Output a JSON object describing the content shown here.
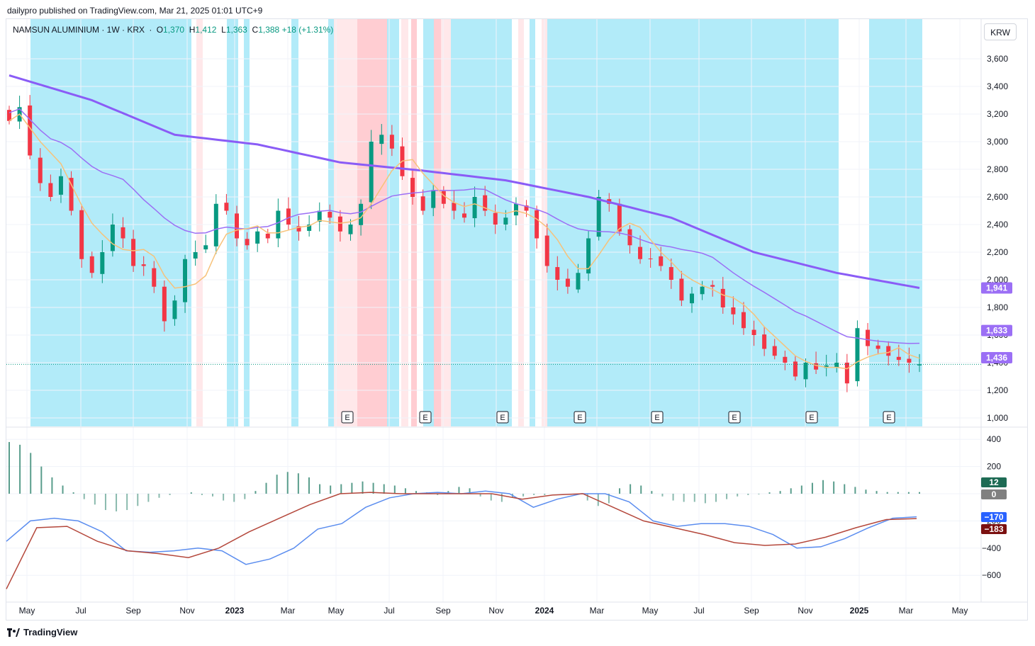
{
  "publisher": "dailypro published on TradingView.com, Mar 21, 2025 01:01 UTC+9",
  "legend": {
    "symbol": "NAMSUN ALUMINIUM · 1W · KRX",
    "o": "1,370",
    "h": "1,412",
    "l": "1,363",
    "c": "1,388",
    "change": "+18 (+1.31%)"
  },
  "currency": "KRW",
  "footer_brand": "TradingView",
  "colors": {
    "up": "#089981",
    "down": "#f23645",
    "ma_slow": "#8a5cf6",
    "ma_fast": "#9b6ff5",
    "ma_short": "#f7c27a",
    "macd": "#5b8def",
    "signal": "#b4473b",
    "hist": "#3c8c78",
    "band_blue": "#b2ebf9",
    "band_red": "#ffcdd2",
    "band_pink": "#ffe8ea"
  },
  "chart_data": {
    "type": "candlestick",
    "price_axis": {
      "ticks": [
        1000,
        1200,
        1400,
        1600,
        1800,
        2000,
        2200,
        2400,
        2600,
        2800,
        3000,
        3200,
        3400,
        3600
      ],
      "range": [
        950,
        3700
      ]
    },
    "time_axis": {
      "labels": [
        "May",
        "Jul",
        "Sep",
        "Nov",
        "2023",
        "Mar",
        "May",
        "Jul",
        "Sep",
        "Nov",
        "2024",
        "Mar",
        "May",
        "Jul",
        "Sep",
        "Nov",
        "2025",
        "Mar",
        "May"
      ]
    },
    "series_labels": {
      "ma_slow": "1,941",
      "ma_mid": "1,633",
      "ma_fast": "1,436"
    },
    "last_price": 1388,
    "earnings_marker": "E",
    "close_path": [
      3150,
      3250,
      2900,
      2700,
      2600,
      2750,
      2500,
      2150,
      2050,
      2200,
      2400,
      2300,
      2100,
      2100,
      1950,
      1700,
      1850,
      2150,
      2200,
      2250,
      2550,
      2500,
      2300,
      2250,
      2350,
      2300,
      2500,
      2400,
      2350,
      2400,
      2500,
      2450,
      2350,
      2400,
      2550,
      3000,
      3050,
      2950,
      2750,
      2600,
      2500,
      2650,
      2550,
      2500,
      2450,
      2600,
      2500,
      2400,
      2450,
      2550,
      2500,
      2300,
      2100,
      2000,
      1950,
      2050,
      2300,
      2600,
      2550,
      2350,
      2250,
      2150,
      2150,
      2100,
      2000,
      1850,
      1900,
      1950,
      1950,
      1800,
      1750,
      1650,
      1600,
      1500,
      1450,
      1400,
      1300,
      1400,
      1350,
      1380,
      1400,
      1250,
      1650,
      1520,
      1500,
      1450,
      1420,
      1400,
      1388
    ],
    "indicator": {
      "ticks": [
        -600,
        -400,
        -200,
        0,
        200,
        400
      ],
      "labels": {
        "hist": "12",
        "zero": "0",
        "macd": "-170",
        "signal": "-183"
      },
      "histogram": [
        380,
        360,
        300,
        200,
        120,
        60,
        10,
        -40,
        -80,
        -120,
        -130,
        -120,
        -90,
        -60,
        -30,
        -10,
        0,
        10,
        -10,
        -20,
        -50,
        -60,
        -40,
        20,
        80,
        140,
        160,
        150,
        120,
        70,
        60,
        70,
        80,
        90,
        80,
        70,
        60,
        40,
        20,
        10,
        -10,
        20,
        50,
        40,
        -20,
        -50,
        -60,
        -30,
        -20,
        -10,
        -10,
        0,
        0,
        -10,
        -50,
        -90,
        -70,
        40,
        70,
        60,
        20,
        -20,
        -50,
        -60,
        -60,
        -70,
        -60,
        -40,
        -20,
        -10,
        -5,
        10,
        20,
        40,
        60,
        80,
        100,
        90,
        70,
        50,
        30,
        20,
        12,
        12,
        12,
        12
      ],
      "macd": [
        -350,
        -200,
        -180,
        -200,
        -280,
        -420,
        -430,
        -420,
        -400,
        -420,
        -520,
        -480,
        -400,
        -260,
        -220,
        -100,
        -30,
        0,
        10,
        0,
        20,
        0,
        -100,
        -40,
        0,
        0,
        -60,
        -200,
        -240,
        -220,
        -220,
        -240,
        -300,
        -400,
        -390,
        -330,
        -250,
        -180,
        -170
      ],
      "signal": [
        -700,
        -250,
        -240,
        -350,
        -420,
        -440,
        -470,
        -400,
        -280,
        -180,
        -80,
        0,
        10,
        0,
        0,
        0,
        0,
        -40,
        -10,
        0,
        -100,
        -200,
        -250,
        -300,
        -360,
        -380,
        -370,
        -320,
        -250,
        -190,
        -183
      ]
    }
  }
}
